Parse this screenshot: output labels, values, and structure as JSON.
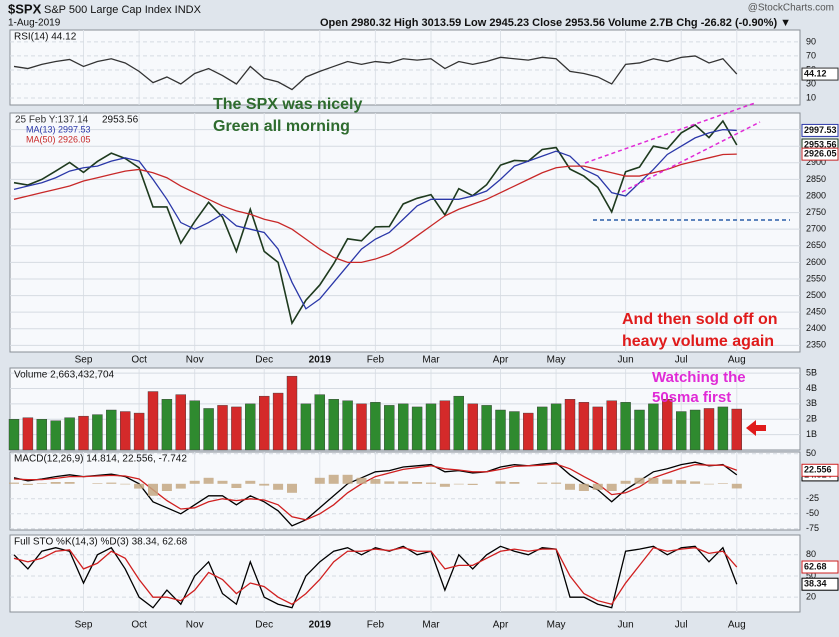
{
  "header": {
    "symbol": "$SPX",
    "name": "S&P 500 Large Cap Index INDX",
    "date": "1-Aug-2019",
    "ohlc": "Open 2980.32  High 3013.59  Low 2945.23  Close 2953.56  Volume 2.7B  Chg -26.82 (-0.90%) ▼",
    "brand": "@StockCharts.com"
  },
  "annotations": [
    {
      "text": "The SPX was nicely",
      "color": "#2e6b2e"
    },
    {
      "text": "Green all morning",
      "color": "#2e6b2e"
    },
    {
      "text": "And then sold off on",
      "color": "#e01b1b"
    },
    {
      "text": "heavy volume again",
      "color": "#e01b1b"
    },
    {
      "text": "Watching the",
      "color": "#e02ad6"
    },
    {
      "text": "50sma first",
      "color": "#e02ad6"
    }
  ],
  "chart_data": [
    {
      "type": "line",
      "label": "25 Feb Y:137.14",
      "sublabel": "2953.56",
      "categories": [
        null,
        null,
        null,
        null,
        null,
        "Sep",
        null,
        null,
        null,
        "Oct",
        null,
        null,
        null,
        "Nov",
        null,
        null,
        null,
        null,
        "Dec",
        null,
        null,
        null,
        "2019",
        null,
        null,
        null,
        "Feb",
        null,
        null,
        null,
        "Mar",
        null,
        null,
        null,
        null,
        "Apr",
        null,
        null,
        null,
        "May",
        null,
        null,
        null,
        null,
        "Jun",
        null,
        null,
        null,
        "Jul",
        null,
        null,
        null,
        "Aug"
      ],
      "ylim": [
        2330,
        3050
      ],
      "yticks": [
        2350,
        2400,
        2450,
        2500,
        2550,
        2600,
        2650,
        2700,
        2750,
        2800,
        2850,
        2900,
        2950,
        3000
      ],
      "grid": true,
      "series": [
        {
          "color": "#1e3a1e",
          "values": [
            2840,
            2833,
            2850,
            2875,
            2901,
            2871,
            2904,
            2929,
            2913,
            2885,
            2767,
            2767,
            2658,
            2723,
            2781,
            2736,
            2633,
            2760,
            2633,
            2600,
            2417,
            2486,
            2532,
            2596,
            2671,
            2665,
            2707,
            2708,
            2776,
            2793,
            2804,
            2743,
            2822,
            2801,
            2834,
            2893,
            2907,
            2905,
            2940,
            2946,
            2881,
            2860,
            2826,
            2752,
            2873,
            2887,
            2950,
            2942,
            2990,
            3014,
            2976,
            3026,
            2953.56
          ]
        },
        {
          "name": "MA(13) 2997.53",
          "color": "#2a37a8",
          "values": [
            2820,
            2830,
            2840,
            2855,
            2875,
            2885,
            2890,
            2905,
            2915,
            2905,
            2850,
            2790,
            2720,
            2700,
            2720,
            2745,
            2710,
            2700,
            2690,
            2640,
            2540,
            2460,
            2490,
            2540,
            2590,
            2640,
            2670,
            2690,
            2730,
            2770,
            2790,
            2790,
            2790,
            2800,
            2815,
            2850,
            2890,
            2905,
            2920,
            2935,
            2920,
            2880,
            2860,
            2810,
            2800,
            2840,
            2880,
            2925,
            2950,
            2975,
            2990,
            3000,
            2997.53
          ]
        },
        {
          "name": "MA(50) 2926.05",
          "color": "#c82828",
          "values": [
            2790,
            2800,
            2810,
            2820,
            2830,
            2845,
            2855,
            2865,
            2875,
            2880,
            2870,
            2855,
            2830,
            2810,
            2790,
            2770,
            2755,
            2745,
            2730,
            2720,
            2700,
            2670,
            2640,
            2615,
            2600,
            2600,
            2610,
            2625,
            2650,
            2680,
            2710,
            2740,
            2760,
            2775,
            2790,
            2810,
            2830,
            2850,
            2870,
            2885,
            2890,
            2890,
            2880,
            2870,
            2860,
            2860,
            2870,
            2880,
            2895,
            2905,
            2915,
            2925,
            2926.05
          ]
        }
      ]
    },
    {
      "type": "line",
      "label": "RSI(14) 44.12",
      "ylim": [
        0,
        107
      ],
      "yticks": [
        10,
        30,
        50,
        70,
        90
      ],
      "grid": true,
      "series": [
        {
          "color": "#333333",
          "values": [
            55,
            52,
            58,
            62,
            65,
            55,
            62,
            66,
            60,
            48,
            32,
            40,
            30,
            45,
            52,
            42,
            30,
            55,
            38,
            33,
            22,
            40,
            48,
            55,
            62,
            58,
            62,
            60,
            66,
            64,
            66,
            52,
            62,
            58,
            62,
            68,
            66,
            64,
            68,
            66,
            48,
            45,
            40,
            30,
            58,
            60,
            66,
            62,
            68,
            70,
            60,
            66,
            44.12
          ]
        }
      ]
    },
    {
      "type": "bar",
      "label": "Volume 2,663,432,704",
      "ylim": [
        0,
        5.33
      ],
      "yticks": [
        {
          "value": 1,
          "label": "1B"
        },
        {
          "value": 2,
          "label": "2B"
        },
        {
          "value": 3,
          "label": "3B"
        },
        {
          "value": 4,
          "label": "4B"
        },
        {
          "value": 5,
          "label": "5B"
        }
      ],
      "grid": true,
      "up_color": "#2f8a2f",
      "down_color": "#d42a2a",
      "values": [
        2.0,
        2.1,
        2.0,
        1.9,
        2.1,
        2.2,
        2.3,
        2.6,
        2.5,
        2.4,
        3.8,
        3.3,
        3.6,
        3.2,
        2.7,
        2.9,
        2.8,
        3.0,
        3.5,
        3.7,
        4.8,
        3.0,
        3.6,
        3.3,
        3.2,
        3.0,
        3.1,
        2.9,
        3.0,
        2.8,
        3.0,
        3.2,
        3.5,
        3.0,
        2.9,
        2.6,
        2.5,
        2.4,
        2.8,
        3.0,
        3.3,
        3.1,
        2.8,
        3.2,
        3.1,
        2.6,
        3.0,
        3.3,
        2.5,
        2.6,
        2.7,
        2.8,
        2.663432704
      ]
    },
    {
      "type": "line",
      "label": "MACD(12,26,9) 14.814, 22.556, -7.742",
      "ylim": [
        -77,
        53
      ],
      "yticks": [
        50,
        -25,
        -50,
        -75
      ],
      "grid": true,
      "series": [
        {
          "color": "#000000",
          "values": [
            10,
            5,
            8,
            12,
            15,
            12,
            14,
            16,
            12,
            0,
            -30,
            -40,
            -50,
            -35,
            -20,
            -20,
            -35,
            -20,
            -30,
            -45,
            -70,
            -60,
            -40,
            -20,
            0,
            10,
            20,
            22,
            28,
            30,
            32,
            20,
            22,
            18,
            20,
            28,
            32,
            30,
            33,
            35,
            15,
            0,
            -10,
            -30,
            -10,
            5,
            20,
            25,
            32,
            36,
            30,
            32,
            14.814
          ]
        },
        {
          "color": "#d02020",
          "values": [
            8,
            7,
            7,
            9,
            12,
            12,
            13,
            14,
            13,
            8,
            -10,
            -28,
            -42,
            -40,
            -30,
            -25,
            -28,
            -25,
            -27,
            -35,
            -55,
            -60,
            -50,
            -35,
            -15,
            0,
            12,
            18,
            24,
            27,
            30,
            25,
            23,
            20,
            20,
            24,
            29,
            30,
            31,
            33,
            25,
            12,
            0,
            -18,
            -15,
            -5,
            10,
            18,
            26,
            32,
            31,
            31,
            22.556
          ]
        },
        {
          "type": "bar",
          "color": "#c4a882",
          "values": [
            2,
            -2,
            1,
            3,
            3,
            0,
            1,
            2,
            -1,
            -8,
            -20,
            -12,
            -8,
            5,
            10,
            5,
            -7,
            5,
            -3,
            -10,
            -15,
            0,
            10,
            15,
            15,
            10,
            8,
            4,
            4,
            3,
            2,
            -5,
            -1,
            -2,
            0,
            4,
            3,
            0,
            2,
            2,
            -10,
            -12,
            -10,
            -12,
            5,
            10,
            10,
            7,
            6,
            4,
            -1,
            1,
            -7.742
          ]
        }
      ]
    },
    {
      "type": "line",
      "label": "Full STO %K(14,3) %D(3) 38.34, 62.68",
      "ylim": [
        -1,
        108
      ],
      "yticks": [
        20,
        50,
        80
      ],
      "grid": true,
      "series": [
        {
          "color": "#000000",
          "values": [
            80,
            60,
            85,
            90,
            85,
            40,
            80,
            90,
            60,
            20,
            5,
            30,
            10,
            50,
            70,
            25,
            10,
            70,
            20,
            10,
            5,
            50,
            70,
            85,
            90,
            80,
            90,
            85,
            92,
            80,
            85,
            30,
            80,
            60,
            80,
            92,
            85,
            80,
            90,
            88,
            20,
            20,
            10,
            5,
            85,
            88,
            92,
            80,
            90,
            92,
            70,
            90,
            38.34
          ]
        },
        {
          "color": "#d02020",
          "values": [
            75,
            70,
            75,
            85,
            87,
            60,
            68,
            85,
            75,
            45,
            20,
            20,
            15,
            30,
            55,
            45,
            25,
            40,
            35,
            20,
            10,
            25,
            45,
            70,
            85,
            85,
            88,
            86,
            90,
            85,
            85,
            60,
            65,
            65,
            75,
            85,
            88,
            85,
            88,
            88,
            50,
            25,
            15,
            10,
            40,
            65,
            90,
            85,
            88,
            90,
            82,
            85,
            62.68
          ]
        }
      ]
    }
  ]
}
